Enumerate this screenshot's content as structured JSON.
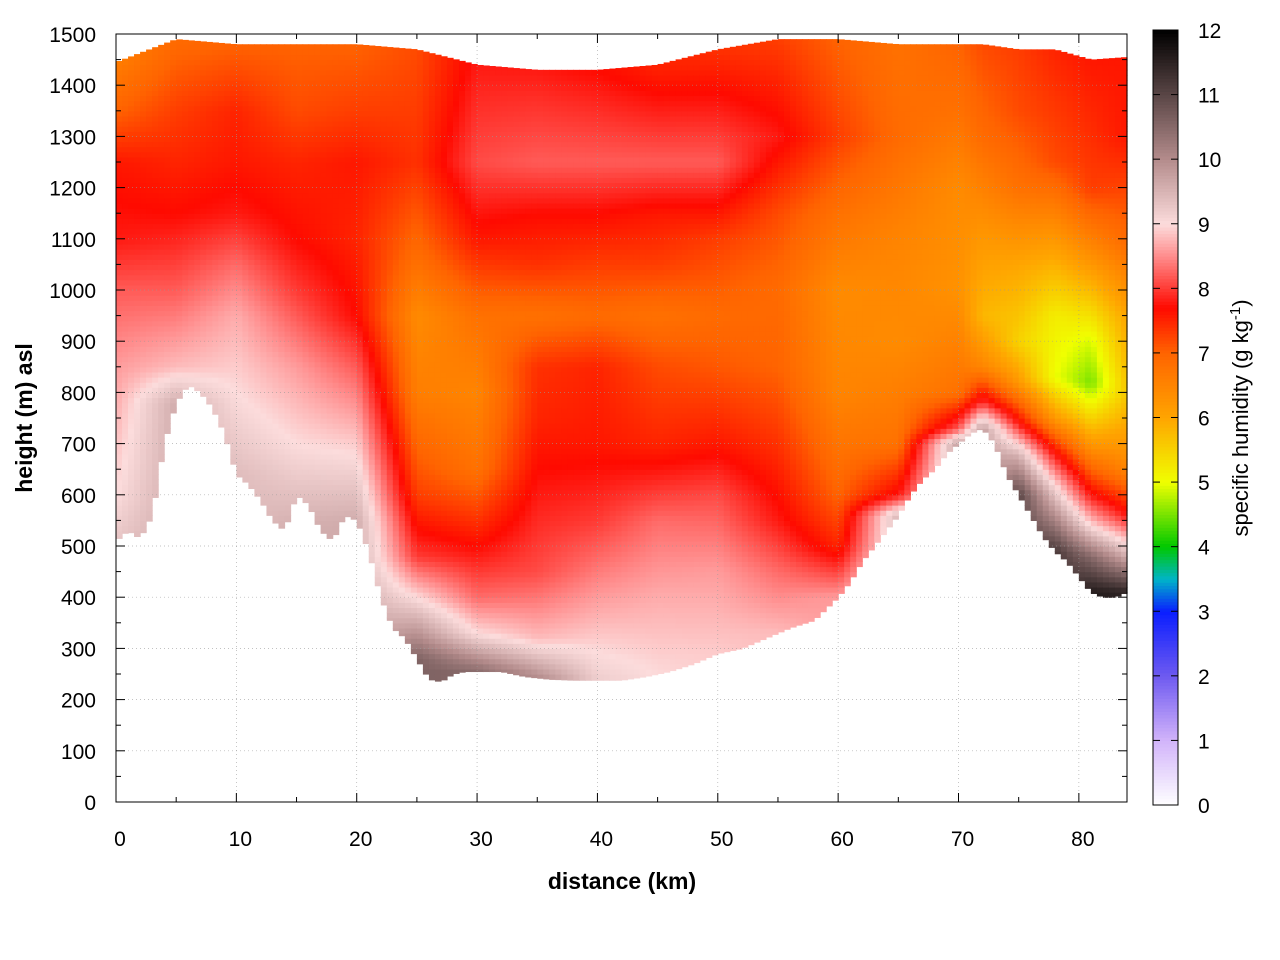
{
  "chart_data": {
    "type": "heatmap",
    "title": "",
    "xlabel": "distance (km)",
    "ylabel": "height (m) asl",
    "xlim": [
      0,
      84
    ],
    "ylim": [
      0,
      1500
    ],
    "x_ticks": [
      0,
      10,
      20,
      30,
      40,
      50,
      60,
      70,
      80
    ],
    "y_ticks": [
      0,
      100,
      200,
      300,
      400,
      500,
      600,
      700,
      800,
      900,
      1000,
      1100,
      1200,
      1300,
      1400,
      1500
    ],
    "grid": true,
    "colorbar": {
      "label_main": "specific humidity (g kg",
      "label_sup": "-1",
      "label_end": ")",
      "range": [
        0,
        12
      ],
      "ticks": [
        0,
        1,
        2,
        3,
        4,
        5,
        6,
        7,
        8,
        9,
        10,
        11,
        12
      ],
      "palette": [
        {
          "v": 0,
          "c": "#ffffff"
        },
        {
          "v": 1,
          "c": "#d2b4fa"
        },
        {
          "v": 2,
          "c": "#6e5af0"
        },
        {
          "v": 3,
          "c": "#0a1eff"
        },
        {
          "v": 3.5,
          "c": "#00b4c8"
        },
        {
          "v": 4,
          "c": "#00c800"
        },
        {
          "v": 5,
          "c": "#f0ff00"
        },
        {
          "v": 6,
          "c": "#ffa500"
        },
        {
          "v": 7,
          "c": "#ff6400"
        },
        {
          "v": 7.7,
          "c": "#ff0a00"
        },
        {
          "v": 8.5,
          "c": "#ff8c8c"
        },
        {
          "v": 9,
          "c": "#fcdcdc"
        },
        {
          "v": 10,
          "c": "#b48c8c"
        },
        {
          "v": 11,
          "c": "#5a4646"
        },
        {
          "v": 12,
          "c": "#000000"
        }
      ]
    },
    "terrain_height_m": {
      "x": [
        0,
        1,
        2,
        3,
        4,
        5,
        6,
        7,
        8,
        9,
        10,
        11,
        12,
        13,
        14,
        15,
        16,
        17,
        18,
        19,
        20,
        21,
        22,
        23,
        24,
        25,
        26,
        27,
        28,
        29,
        30,
        32,
        34,
        36,
        38,
        40,
        42,
        44,
        46,
        48,
        50,
        52,
        54,
        56,
        58,
        60,
        61,
        62,
        63,
        64,
        65,
        66,
        67,
        68,
        69,
        70,
        71,
        72,
        73,
        74,
        75,
        76,
        77,
        78,
        79,
        80,
        81,
        82,
        83,
        84
      ],
      "h": [
        510,
        530,
        515,
        560,
        700,
        780,
        815,
        800,
        770,
        720,
        640,
        620,
        590,
        550,
        530,
        600,
        580,
        530,
        510,
        560,
        550,
        490,
        400,
        340,
        320,
        280,
        240,
        235,
        250,
        255,
        255,
        255,
        245,
        240,
        238,
        238,
        238,
        245,
        255,
        270,
        290,
        300,
        320,
        340,
        355,
        400,
        430,
        470,
        500,
        530,
        560,
        600,
        630,
        650,
        680,
        700,
        720,
        730,
        700,
        640,
        600,
        560,
        520,
        490,
        470,
        440,
        410,
        400,
        400,
        410
      ]
    },
    "column_profiles": [
      {
        "x": 0,
        "top": 1445,
        "values": [
          [
            510,
            9.3
          ],
          [
            600,
            9.0
          ],
          [
            850,
            8.6
          ],
          [
            1000,
            8.2
          ],
          [
            1100,
            7.8
          ],
          [
            1250,
            7.6
          ],
          [
            1350,
            7.0
          ],
          [
            1450,
            6.6
          ]
        ]
      },
      {
        "x": 5,
        "top": 1490,
        "values": [
          [
            780,
            9.6
          ],
          [
            850,
            8.8
          ],
          [
            1000,
            8.2
          ],
          [
            1150,
            7.7
          ],
          [
            1250,
            7.5
          ],
          [
            1350,
            7.3
          ],
          [
            1490,
            6.9
          ]
        ]
      },
      {
        "x": 10,
        "top": 1480,
        "values": [
          [
            640,
            9.4
          ],
          [
            800,
            9.0
          ],
          [
            950,
            8.7
          ],
          [
            1050,
            8.3
          ],
          [
            1150,
            7.8
          ],
          [
            1250,
            7.6
          ],
          [
            1350,
            7.5
          ],
          [
            1480,
            7.0
          ]
        ]
      },
      {
        "x": 15,
        "top": 1480,
        "values": [
          [
            530,
            9.6
          ],
          [
            700,
            9.0
          ],
          [
            850,
            8.6
          ],
          [
            1000,
            8.0
          ],
          [
            1100,
            7.7
          ],
          [
            1250,
            7.5
          ],
          [
            1350,
            7.2
          ],
          [
            1480,
            7.0
          ]
        ]
      },
      {
        "x": 20,
        "top": 1480,
        "values": [
          [
            550,
            9.6
          ],
          [
            700,
            8.9
          ],
          [
            850,
            8.2
          ],
          [
            950,
            7.7
          ],
          [
            1100,
            7.5
          ],
          [
            1250,
            7.6
          ],
          [
            1350,
            7.3
          ],
          [
            1480,
            7.0
          ]
        ]
      },
      {
        "x": 25,
        "top": 1470,
        "values": [
          [
            280,
            10.6
          ],
          [
            400,
            9.0
          ],
          [
            480,
            8.0
          ],
          [
            600,
            7.3
          ],
          [
            800,
            6.6
          ],
          [
            950,
            6.4
          ],
          [
            1050,
            6.8
          ],
          [
            1250,
            7.4
          ],
          [
            1470,
            7.2
          ]
        ]
      },
      {
        "x": 30,
        "top": 1440,
        "values": [
          [
            255,
            10.5
          ],
          [
            330,
            9.0
          ],
          [
            400,
            8.3
          ],
          [
            500,
            7.7
          ],
          [
            650,
            6.8
          ],
          [
            800,
            6.5
          ],
          [
            950,
            6.8
          ],
          [
            1100,
            7.6
          ],
          [
            1250,
            8.1
          ],
          [
            1440,
            7.8
          ]
        ]
      },
      {
        "x": 35,
        "top": 1430,
        "values": [
          [
            245,
            10.0
          ],
          [
            320,
            8.8
          ],
          [
            450,
            8.1
          ],
          [
            600,
            7.8
          ],
          [
            750,
            7.5
          ],
          [
            850,
            7.4
          ],
          [
            950,
            6.8
          ],
          [
            1050,
            7.4
          ],
          [
            1150,
            7.7
          ],
          [
            1250,
            8.2
          ],
          [
            1430,
            7.8
          ]
        ]
      },
      {
        "x": 40,
        "top": 1430,
        "values": [
          [
            238,
            9.2
          ],
          [
            400,
            8.6
          ],
          [
            550,
            8.0
          ],
          [
            700,
            7.6
          ],
          [
            850,
            7.5
          ],
          [
            950,
            6.9
          ],
          [
            1050,
            7.3
          ],
          [
            1150,
            7.7
          ],
          [
            1250,
            8.2
          ],
          [
            1430,
            7.7
          ]
        ]
      },
      {
        "x": 45,
        "top": 1440,
        "values": [
          [
            245,
            9.0
          ],
          [
            400,
            8.7
          ],
          [
            550,
            8.3
          ],
          [
            700,
            7.5
          ],
          [
            850,
            7.2
          ],
          [
            950,
            6.8
          ],
          [
            1050,
            7.3
          ],
          [
            1150,
            7.6
          ],
          [
            1250,
            8.2
          ],
          [
            1440,
            7.5
          ]
        ]
      },
      {
        "x": 50,
        "top": 1470,
        "values": [
          [
            290,
            8.9
          ],
          [
            450,
            8.6
          ],
          [
            600,
            8.1
          ],
          [
            700,
            7.6
          ],
          [
            850,
            7.1
          ],
          [
            950,
            6.9
          ],
          [
            1100,
            7.3
          ],
          [
            1250,
            8.2
          ],
          [
            1470,
            7.4
          ]
        ]
      },
      {
        "x": 55,
        "top": 1490,
        "values": [
          [
            330,
            8.8
          ],
          [
            450,
            8.3
          ],
          [
            550,
            7.8
          ],
          [
            700,
            7.4
          ],
          [
            850,
            7.0
          ],
          [
            1000,
            6.9
          ],
          [
            1150,
            7.2
          ],
          [
            1300,
            7.8
          ],
          [
            1490,
            7.3
          ]
        ]
      },
      {
        "x": 60,
        "top": 1490,
        "values": [
          [
            400,
            8.6
          ],
          [
            500,
            7.5
          ],
          [
            600,
            7.0
          ],
          [
            800,
            6.5
          ],
          [
            1000,
            6.4
          ],
          [
            1150,
            6.8
          ],
          [
            1300,
            7.3
          ],
          [
            1490,
            7.0
          ]
        ]
      },
      {
        "x": 65,
        "top": 1480,
        "values": [
          [
            560,
            9.5
          ],
          [
            600,
            7.8
          ],
          [
            700,
            6.8
          ],
          [
            900,
            6.4
          ],
          [
            1100,
            6.5
          ],
          [
            1300,
            6.9
          ],
          [
            1480,
            6.8
          ]
        ]
      },
      {
        "x": 70,
        "top": 1480,
        "values": [
          [
            700,
            9.8
          ],
          [
            730,
            8.2
          ],
          [
            800,
            6.8
          ],
          [
            1000,
            6.3
          ],
          [
            1200,
            6.4
          ],
          [
            1350,
            6.8
          ],
          [
            1480,
            7.0
          ]
        ]
      },
      {
        "x": 72,
        "top": 1480,
        "values": [
          [
            730,
            9.8
          ],
          [
            780,
            8.0
          ],
          [
            850,
            6.5
          ],
          [
            950,
            5.8
          ],
          [
            1100,
            6.2
          ],
          [
            1300,
            6.9
          ],
          [
            1480,
            7.2
          ]
        ]
      },
      {
        "x": 75,
        "top": 1470,
        "values": [
          [
            600,
            11.0
          ],
          [
            680,
            9.5
          ],
          [
            740,
            7.8
          ],
          [
            820,
            6.2
          ],
          [
            900,
            5.5
          ],
          [
            1050,
            6.0
          ],
          [
            1200,
            6.8
          ],
          [
            1350,
            7.2
          ],
          [
            1470,
            7.3
          ]
        ]
      },
      {
        "x": 78,
        "top": 1470,
        "values": [
          [
            490,
            11.2
          ],
          [
            560,
            10.0
          ],
          [
            620,
            9.0
          ],
          [
            680,
            7.8
          ],
          [
            750,
            6.2
          ],
          [
            830,
            5.0
          ],
          [
            950,
            5.2
          ],
          [
            1100,
            6.2
          ],
          [
            1250,
            7.2
          ],
          [
            1470,
            7.5
          ]
        ]
      },
      {
        "x": 81,
        "top": 1450,
        "values": [
          [
            410,
            11.6
          ],
          [
            480,
            10.5
          ],
          [
            540,
            9.0
          ],
          [
            600,
            7.8
          ],
          [
            700,
            6.2
          ],
          [
            820,
            4.5
          ],
          [
            900,
            4.9
          ],
          [
            1050,
            6.2
          ],
          [
            1200,
            7.3
          ],
          [
            1450,
            7.6
          ]
        ]
      },
      {
        "x": 84,
        "top": 1455,
        "values": [
          [
            410,
            11.5
          ],
          [
            480,
            9.6
          ],
          [
            560,
            7.8
          ],
          [
            650,
            6.5
          ],
          [
            800,
            5.6
          ],
          [
            950,
            6.0
          ],
          [
            1100,
            6.9
          ],
          [
            1300,
            7.6
          ],
          [
            1455,
            7.6
          ]
        ]
      }
    ]
  }
}
